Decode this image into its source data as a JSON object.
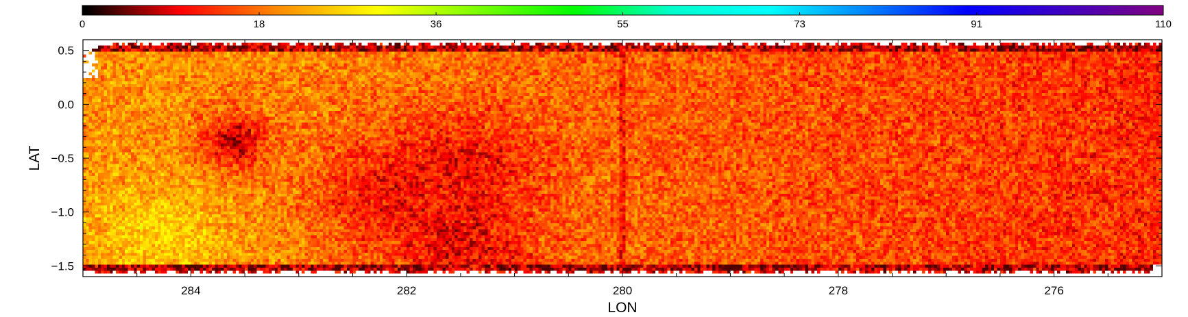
{
  "chart_data": {
    "type": "heatmap",
    "title": "",
    "xlabel": "LON",
    "ylabel": "LAT",
    "x_reversed": true,
    "xlim": [
      285.0,
      275.0
    ],
    "ylim": [
      -1.6,
      0.6
    ],
    "x_ticks": [
      284,
      282,
      280,
      278,
      276
    ],
    "x_tick_labels": [
      "284",
      "282",
      "280",
      "278",
      "276"
    ],
    "y_ticks": [
      0.5,
      0.0,
      -0.5,
      -1.0,
      -1.5
    ],
    "y_tick_labels": [
      "0.5",
      "0.0",
      "−0.5",
      "−1.0",
      "−1.5"
    ],
    "data_extent": {
      "lon": [
        285.0,
        275.0
      ],
      "lat": [
        -1.55,
        0.55
      ]
    },
    "colorbar": {
      "range": [
        0,
        110
      ],
      "tick_values": [
        0,
        18,
        36,
        55,
        73,
        91,
        110
      ],
      "tick_labels": [
        "0",
        "18",
        "36",
        "55",
        "73",
        "91",
        "110"
      ],
      "colormap": [
        "#000000",
        "#ff0000",
        "#ff8c00",
        "#ffff00",
        "#7fff00",
        "#00ff00",
        "#00ffcc",
        "#00ffff",
        "#0080ff",
        "#0000ff",
        "#4000c0",
        "#800080"
      ],
      "position": "top"
    },
    "field_value_range": [
      3,
      32
    ],
    "features": [
      {
        "description": "local minimum",
        "lon": 283.6,
        "lat": -0.35,
        "value": 4
      },
      {
        "description": "low region",
        "lon": 282.2,
        "lat": -0.8,
        "value": 9
      },
      {
        "description": "low region",
        "lon": 281.5,
        "lat": -1.35,
        "value": 7
      },
      {
        "description": "low region",
        "lon": 281.4,
        "lat": -0.55,
        "value": 9
      },
      {
        "description": "high region",
        "lon": 284.3,
        "lat": -1.25,
        "value": 28
      },
      {
        "description": "vertical seam",
        "lon": 280.0,
        "lat": -0.5,
        "value": 6
      }
    ]
  }
}
